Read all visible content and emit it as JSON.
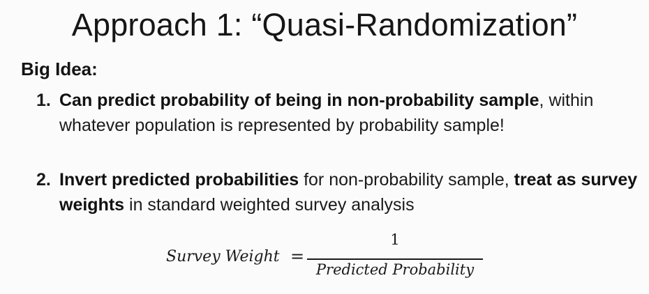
{
  "slide": {
    "title": "Approach 1: “Quasi-Randomization”",
    "big_idea": "Big Idea:",
    "items": [
      {
        "number": "1.",
        "bold": "Can predict probability of being in non-probability sample",
        "rest": ", within whatever population is represented by probability sample!"
      },
      {
        "number": "2.",
        "bold1": "Invert predicted probabilities",
        "mid": " for non-probability sample, ",
        "bold2": "treat as survey weights",
        "rest": " in standard weighted survey analysis"
      }
    ],
    "formula": {
      "lhs": "Survey Weight",
      "equals": "=",
      "numerator": "1",
      "denominator": "Predicted Probability"
    }
  }
}
